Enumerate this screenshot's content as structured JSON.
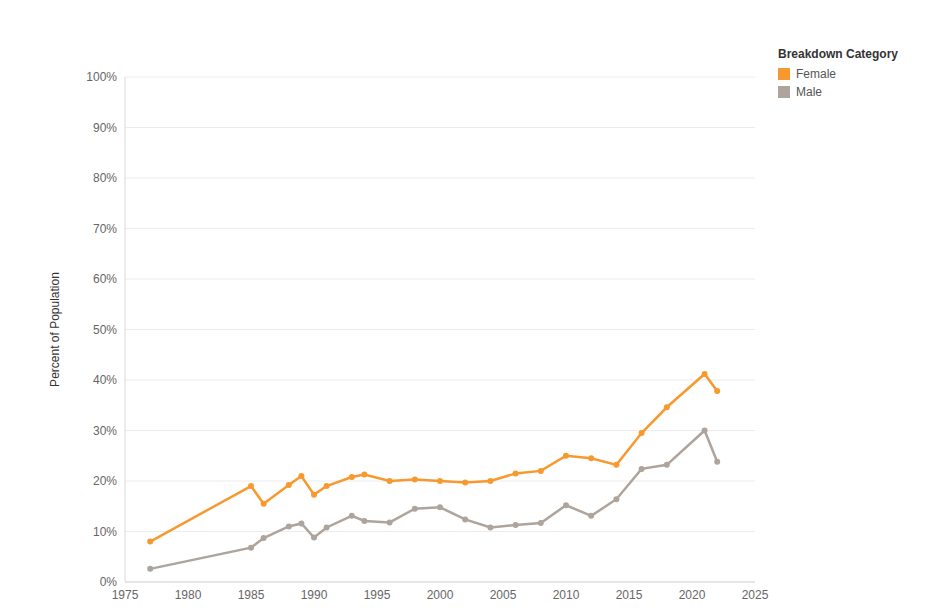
{
  "chart_data": {
    "type": "line",
    "y_label": "Percent of Population",
    "legend_title": "Breakdown Category",
    "legend": "upper right",
    "grid": true,
    "marker": "circle",
    "x": [
      1977,
      1985,
      1986,
      1988,
      1989,
      1990,
      1991,
      1993,
      1994,
      1996,
      1998,
      2000,
      2002,
      2004,
      2006,
      2008,
      2010,
      2012,
      2014,
      2016,
      2018,
      2021,
      2022
    ],
    "series": [
      {
        "name": "Female",
        "color": "#f7992f",
        "values": [
          8,
          19,
          15.5,
          19.2,
          21,
          17.3,
          19,
          20.8,
          21.3,
          20,
          20.3,
          20,
          19.7,
          20,
          21.5,
          22,
          25,
          24.5,
          23.2,
          29.5,
          34.6,
          41.2,
          37.8
        ]
      },
      {
        "name": "Male",
        "color": "#aea49b",
        "values": [
          2.6,
          6.8,
          8.7,
          11,
          11.6,
          8.8,
          10.8,
          13.1,
          12.1,
          11.8,
          14.5,
          14.8,
          12.4,
          10.8,
          11.3,
          11.7,
          15.2,
          13.1,
          16.4,
          22.4,
          23.2,
          30,
          23.8
        ]
      }
    ],
    "xlim": [
      1975,
      2025
    ],
    "xticks": [
      1975,
      1980,
      1985,
      1990,
      1995,
      2000,
      2005,
      2010,
      2015,
      2020,
      2025
    ],
    "ylim": [
      0,
      100
    ],
    "yticks": [
      {
        "value": 0,
        "label": "0%"
      },
      {
        "value": 10,
        "label": "10%"
      },
      {
        "value": 20,
        "label": "20%"
      },
      {
        "value": 30,
        "label": "30%"
      },
      {
        "value": 40,
        "label": "40%"
      },
      {
        "value": 50,
        "label": "50%"
      },
      {
        "value": 60,
        "label": "60%"
      },
      {
        "value": 70,
        "label": "70%"
      },
      {
        "value": 80,
        "label": "80%"
      },
      {
        "value": 90,
        "label": "90%"
      },
      {
        "value": 100,
        "label": "100%"
      }
    ]
  }
}
